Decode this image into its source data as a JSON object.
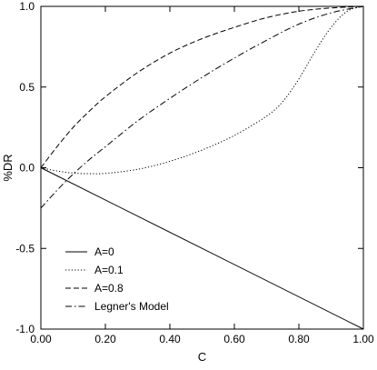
{
  "chart_data": {
    "type": "line",
    "title": "",
    "xlabel": "C",
    "ylabel": "%DR",
    "xlim": [
      0,
      1
    ],
    "ylim": [
      -1,
      1
    ],
    "grid": false,
    "legend_position": "bottom-left",
    "xticks": [
      0,
      0.2,
      0.4,
      0.6,
      0.8,
      1.0
    ],
    "xtick_labels": [
      "0.00",
      "0.20",
      "0.40",
      "0.60",
      "0.80",
      "1.00"
    ],
    "yticks": [
      -1,
      -0.5,
      0,
      0.5,
      1
    ],
    "ytick_labels": [
      "-1.0",
      "-0.5",
      "0.0",
      "0.5",
      "1.0"
    ],
    "series": [
      {
        "name": "A=0",
        "style": "solid",
        "x": [
          0,
          1
        ],
        "y": [
          0,
          -1
        ]
      },
      {
        "name": "A=0.1",
        "style": "dotted",
        "x": [
          0,
          0.05,
          0.1,
          0.15,
          0.2,
          0.3,
          0.4,
          0.5,
          0.6,
          0.7,
          0.75,
          0.8,
          0.85,
          0.9,
          0.95,
          1.0
        ],
        "y": [
          0,
          -0.02,
          -0.033,
          -0.037,
          -0.035,
          -0.01,
          0.04,
          0.11,
          0.2,
          0.32,
          0.41,
          0.55,
          0.72,
          0.87,
          0.97,
          1.0
        ]
      },
      {
        "name": "A=0.8",
        "style": "dashed",
        "x": [
          0,
          0.05,
          0.1,
          0.15,
          0.2,
          0.3,
          0.4,
          0.5,
          0.6,
          0.7,
          0.8,
          0.9,
          1.0
        ],
        "y": [
          0,
          0.13,
          0.25,
          0.35,
          0.44,
          0.59,
          0.71,
          0.8,
          0.87,
          0.93,
          0.97,
          0.99,
          1.0
        ]
      },
      {
        "name": "Legner's Model",
        "style": "dashdot",
        "x": [
          0,
          0.05,
          0.1,
          0.15,
          0.2,
          0.3,
          0.4,
          0.5,
          0.6,
          0.7,
          0.8,
          0.9,
          1.0
        ],
        "y": [
          -0.25,
          -0.14,
          -0.04,
          0.05,
          0.13,
          0.29,
          0.43,
          0.56,
          0.68,
          0.79,
          0.89,
          0.96,
          1.0
        ]
      }
    ]
  }
}
